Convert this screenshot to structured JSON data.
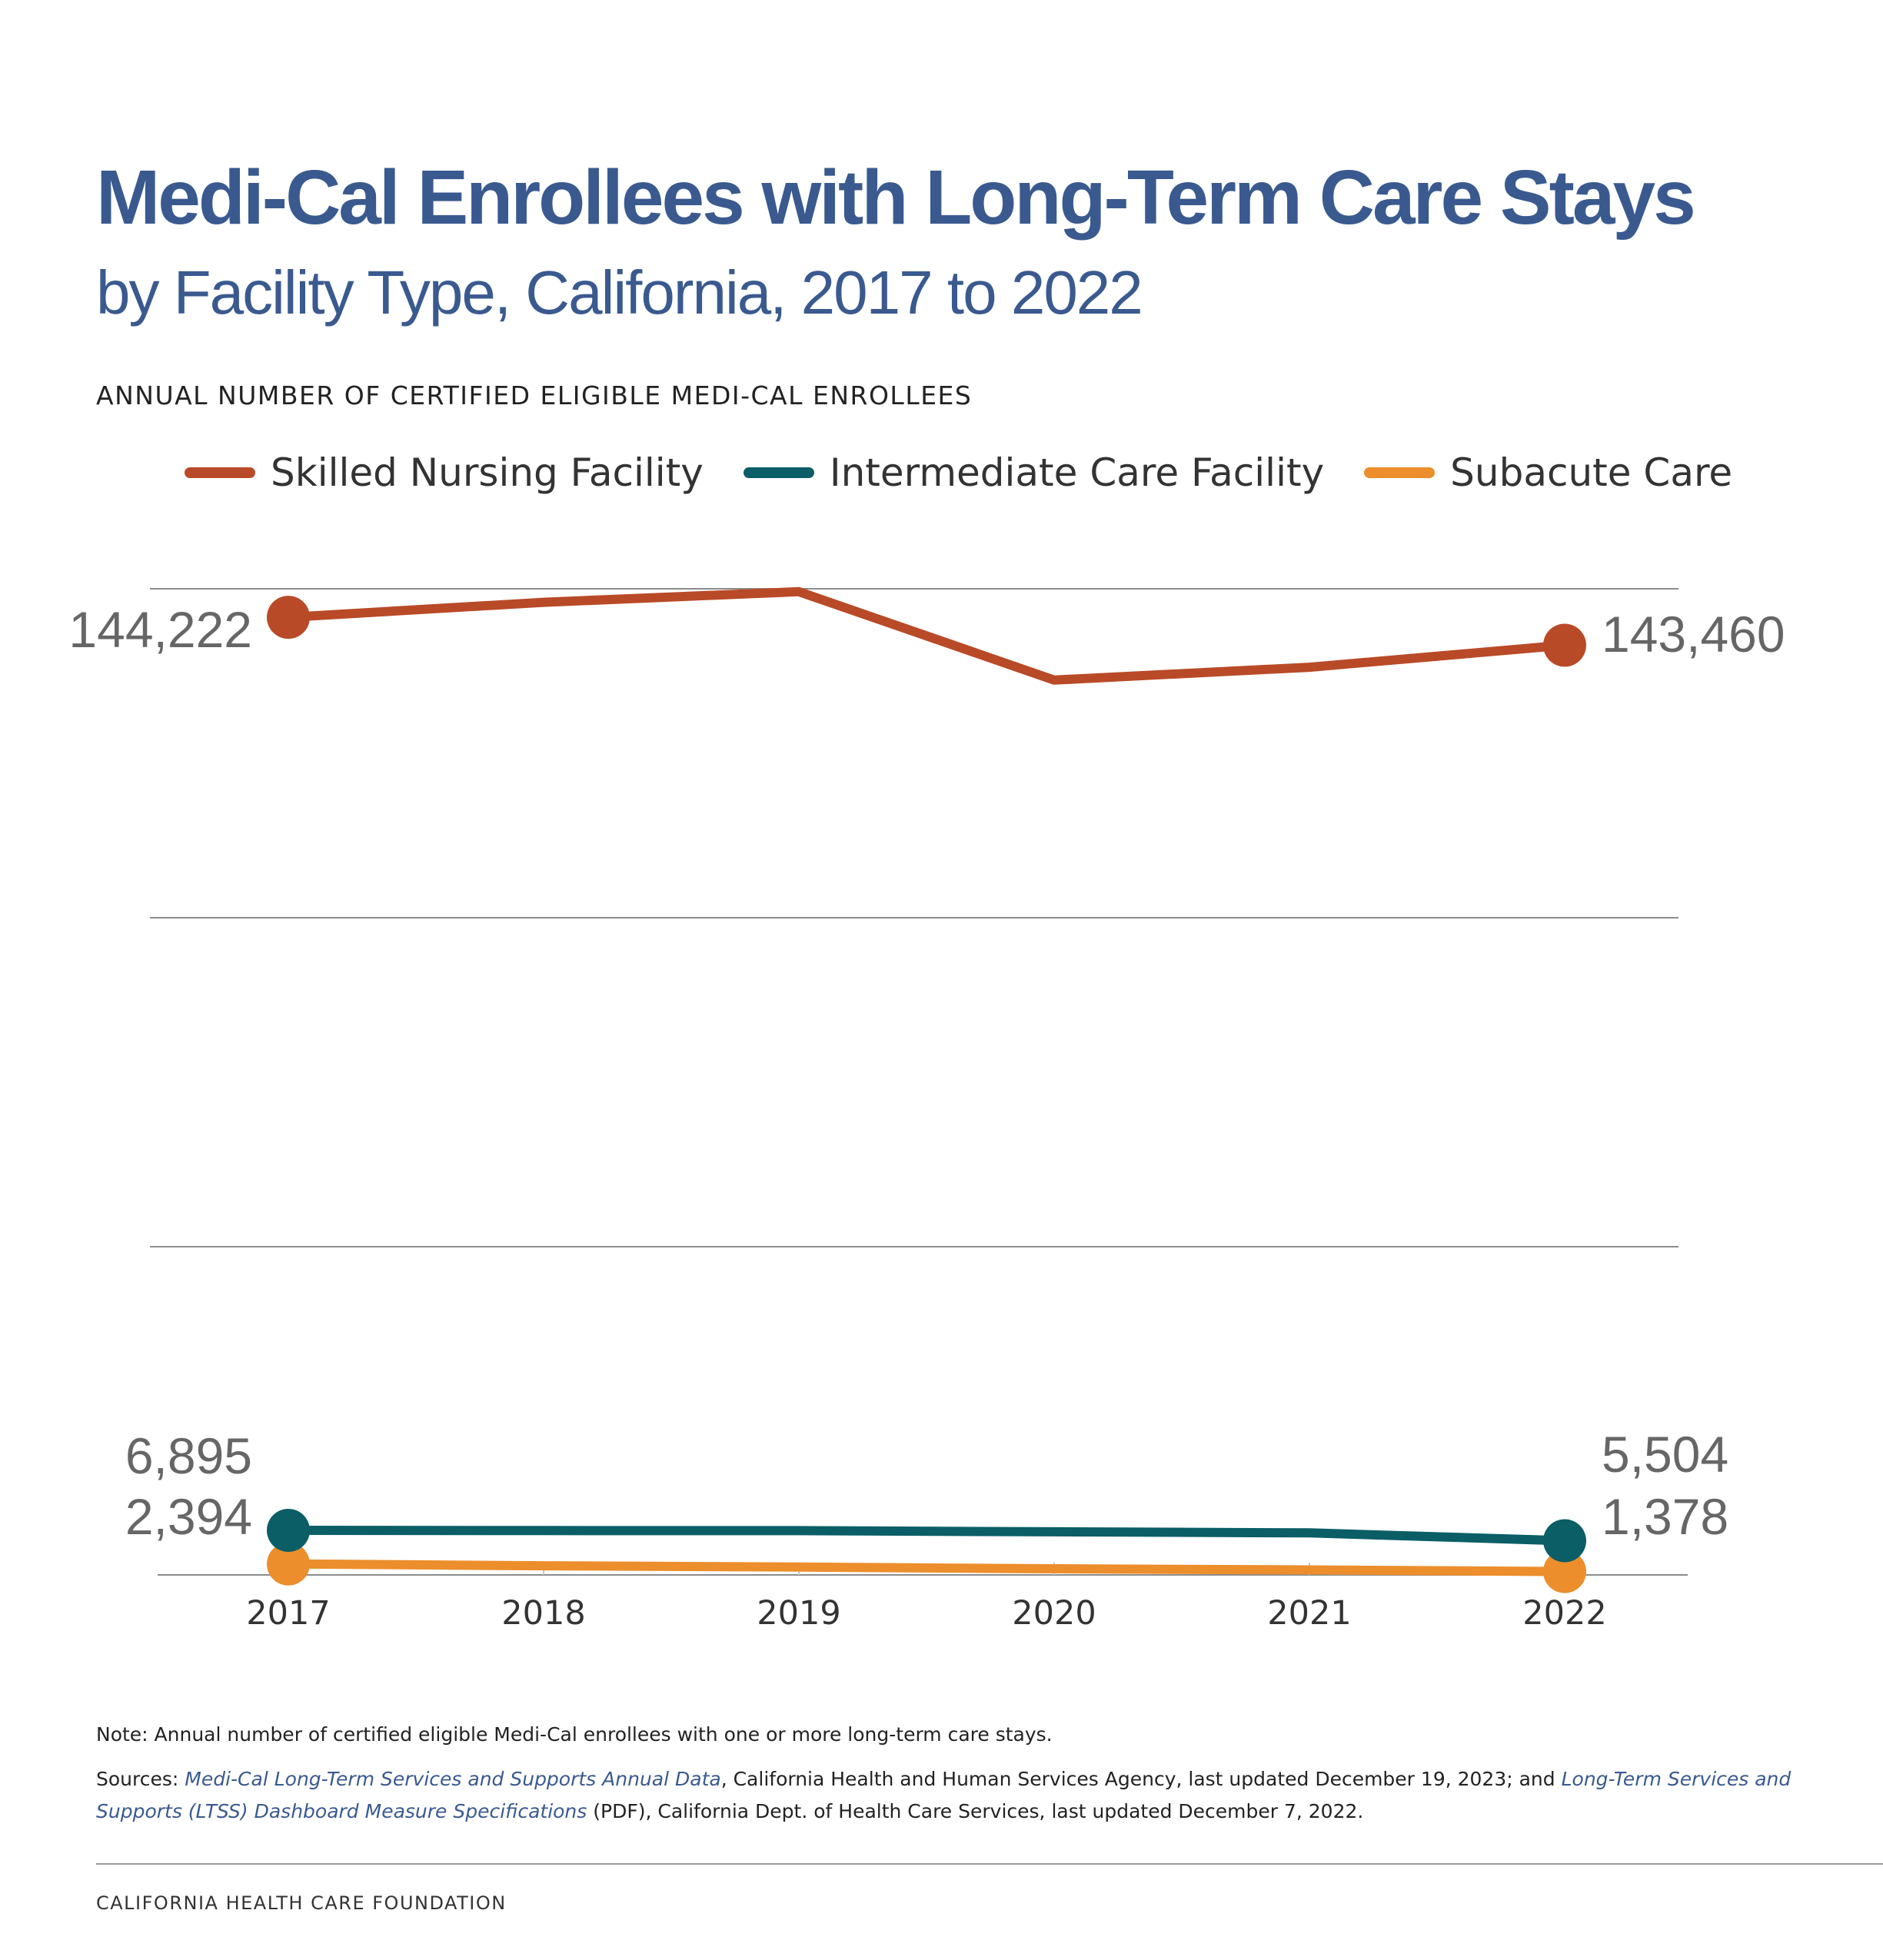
{
  "header": {
    "title": "Medi-Cal Enrollees with Long-Term Care Stays",
    "subtitle": "by Facility Type, California, 2017 to 2022",
    "axis_label": "ANNUAL NUMBER OF CERTIFIED ELIGIBLE MEDI-CAL ENROLLEES"
  },
  "legend": [
    {
      "label": "Skilled Nursing Facility",
      "color": "#b94a28"
    },
    {
      "label": "Intermediate Care Facility",
      "color": "#0b5e66"
    },
    {
      "label": "Subacute Care",
      "color": "#ec8e2c"
    }
  ],
  "chart_data": {
    "type": "line",
    "x": [
      "2017",
      "2018",
      "2019",
      "2020",
      "2021",
      "2022"
    ],
    "axis_break": true,
    "grid": true,
    "legend_position": "top",
    "series": [
      {
        "name": "Skilled Nursing Facility",
        "color": "#b94a28",
        "values": [
          144222,
          144630,
          144920,
          142510,
          142860,
          143460
        ]
      },
      {
        "name": "Intermediate Care Facility",
        "color": "#0b5e66",
        "values": [
          6895,
          6870,
          6860,
          6700,
          6560,
          5504
        ]
      },
      {
        "name": "Subacute Care",
        "color": "#ec8e2c",
        "values": [
          2394,
          2150,
          1980,
          1750,
          1600,
          1378
        ]
      }
    ],
    "endpoint_labels": [
      {
        "series": "Skilled Nursing Facility",
        "start": "144,222",
        "end": "143,460"
      },
      {
        "series": "Intermediate Care Facility",
        "start": "6,895",
        "end": "5,504"
      },
      {
        "series": "Subacute Care",
        "start": "2,394",
        "end": "1,378"
      }
    ]
  },
  "footer": {
    "note": "Note: Annual number of certified eligible Medi-Cal enrollees with one or more long-term care stays.",
    "sources_prefix": "Sources: ",
    "source_link_1": "Medi-Cal Long-Term Services and Supports Annual Data",
    "source_text_1": ", California Health and Human Services Agency, last updated December 19, 2023; and ",
    "source_link_2": "Long-Term Services and Supports (LTSS) Dashboard Measure Specifications",
    "source_text_2": " (PDF), California Dept. of Health Care Services, last updated December 7, 2022.",
    "organization": "CALIFORNIA HEALTH CARE FOUNDATION"
  }
}
